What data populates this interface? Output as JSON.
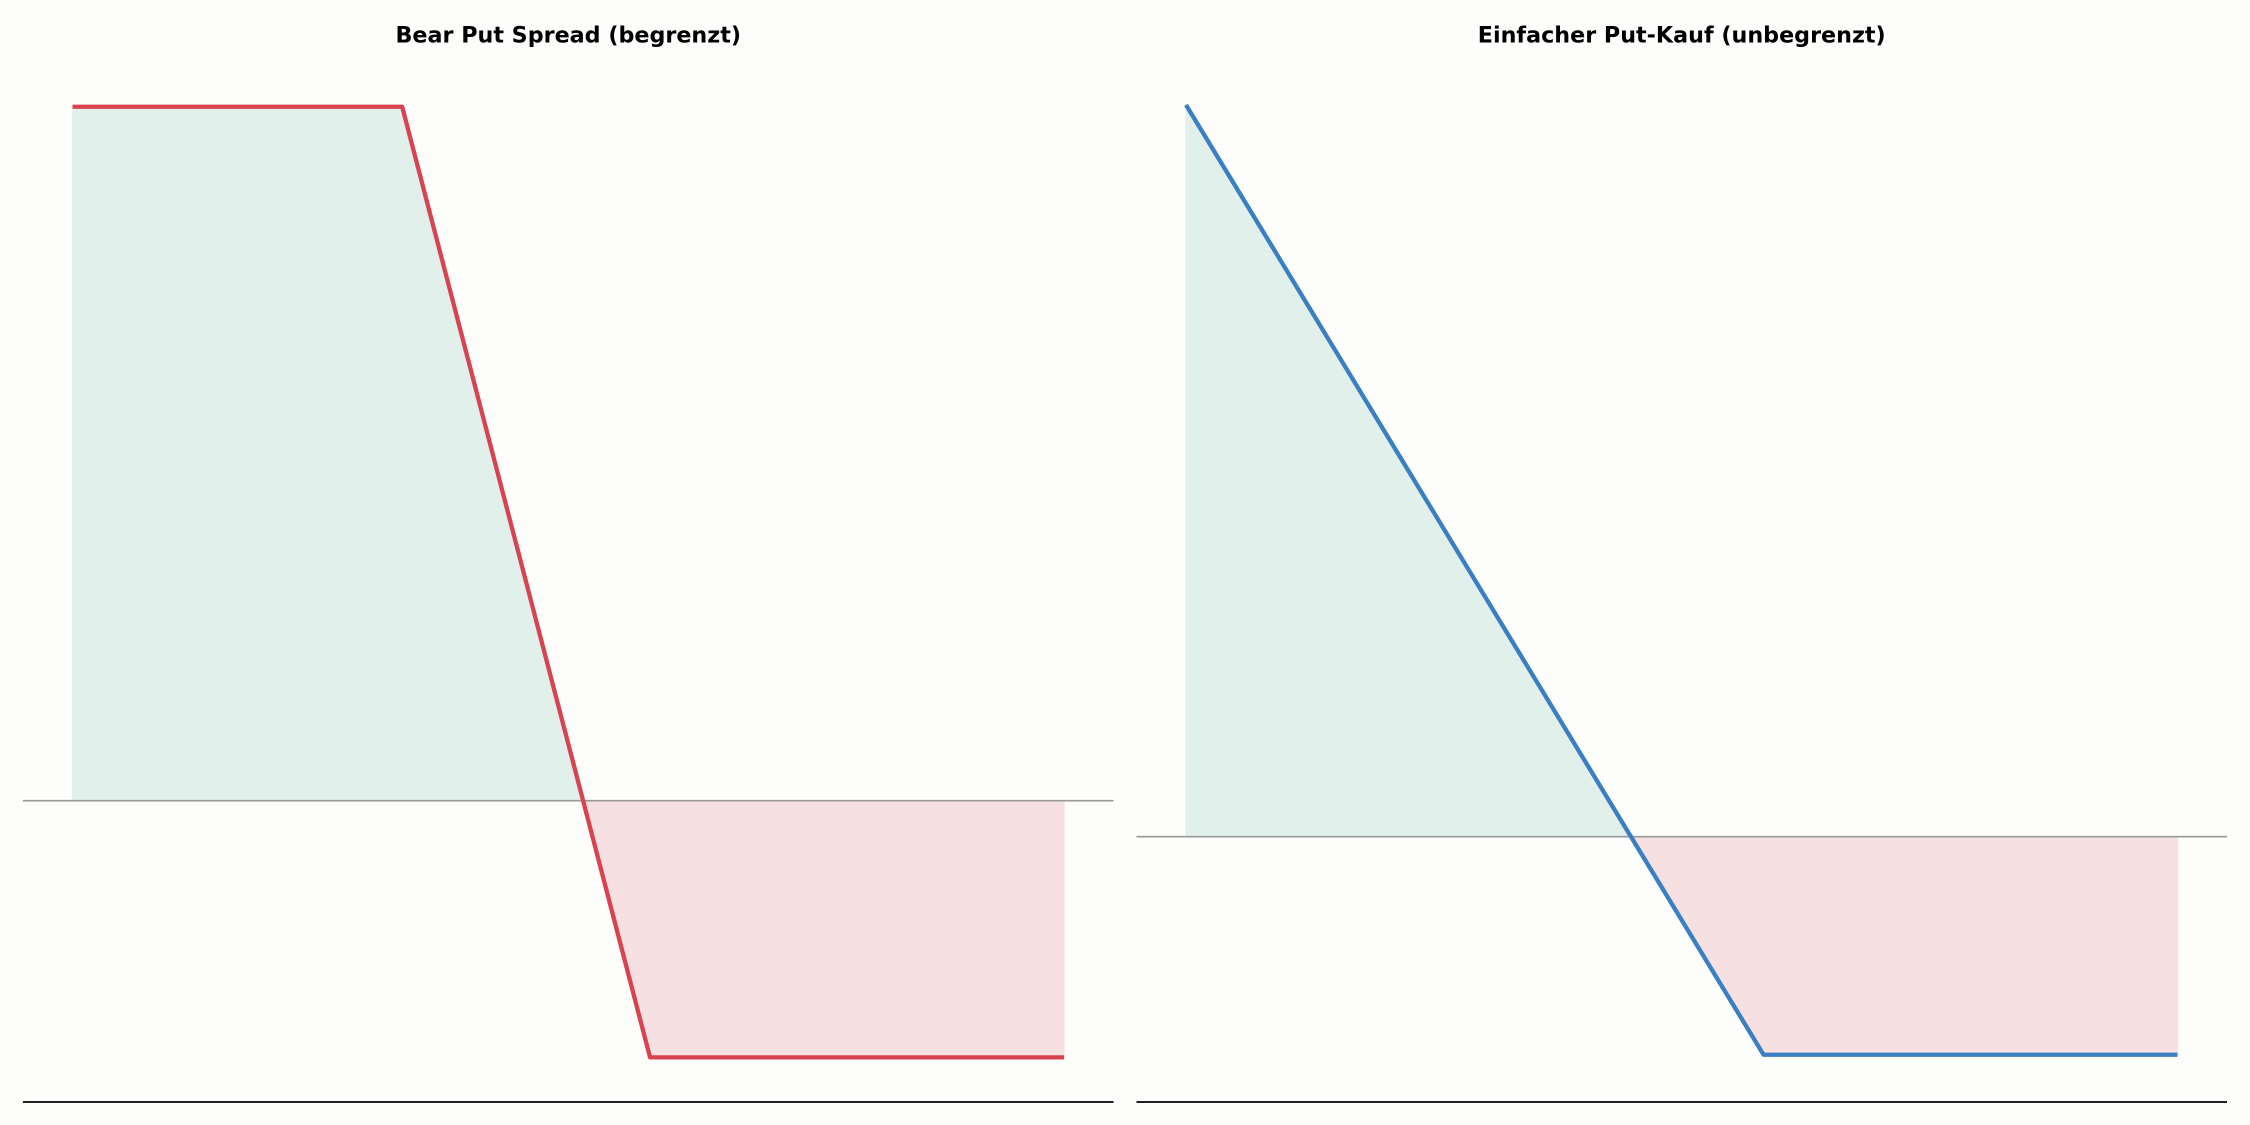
{
  "chart_data": [
    {
      "type": "line",
      "title": "Bear Put Spread (begrenzt)",
      "x": [
        80,
        93.3,
        103.3,
        120
      ],
      "series": [
        {
          "color": "#d9434f",
          "values": [
            7.3,
            7.3,
            -2.7,
            -2.7
          ]
        }
      ],
      "fill_colors": {
        "positive": "#e1f0ea",
        "negative": "#f7e0e2"
      },
      "xlim": [
        78,
        122
      ],
      "ylim": [
        -3.17,
        8
      ]
    },
    {
      "type": "line",
      "title": "Einfacher Put-Kauf (unbegrenzt)",
      "x": [
        80,
        103.3,
        120
      ],
      "series": [
        {
          "color": "#3a7ec4",
          "values": [
            17.95,
            -5.35,
            -5.35
          ]
        }
      ],
      "fill_colors": {
        "positive": "#e1f0ea",
        "negative": "#f7e0e2"
      },
      "xlim": [
        78,
        122
      ],
      "ylim": [
        -6.51,
        19.54
      ]
    }
  ]
}
